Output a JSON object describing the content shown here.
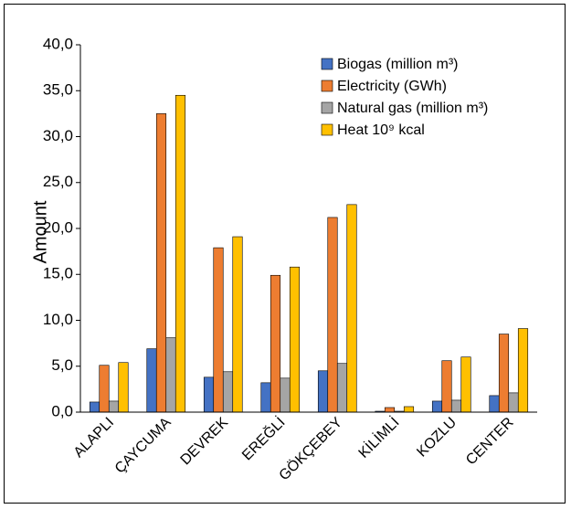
{
  "chart_data": {
    "type": "bar",
    "title": "",
    "xlabel": "",
    "ylabel": "Amount",
    "ylim": [
      0,
      40
    ],
    "yticks": [
      "0,0",
      "5,0",
      "10,0",
      "15,0",
      "20,0",
      "25,0",
      "30,0",
      "35,0",
      "40,0"
    ],
    "grid": false,
    "legend_position": "top-right",
    "categories": [
      "ALAPLI",
      "ÇAYCUMA",
      "DEVREK",
      "EREĞLİ",
      "GÖKÇEBEY",
      "KİLİMLİ",
      "KOZLU",
      "CENTER"
    ],
    "series": [
      {
        "name": "Biogas (million m³)",
        "color": "#4472C4",
        "values": [
          1.1,
          6.9,
          3.8,
          3.2,
          4.5,
          0.1,
          1.2,
          1.8
        ]
      },
      {
        "name": "Electricity (GWh)",
        "color": "#ED7D31",
        "values": [
          5.1,
          32.5,
          17.9,
          14.9,
          21.2,
          0.5,
          5.6,
          8.5
        ]
      },
      {
        "name": "Natural gas (million m³)",
        "color": "#A5A5A5",
        "values": [
          1.2,
          8.1,
          4.4,
          3.7,
          5.3,
          0.1,
          1.3,
          2.1
        ]
      },
      {
        "name": "Heat 10⁹ kcal",
        "color": "#FFC000",
        "values": [
          5.4,
          34.5,
          19.1,
          15.8,
          22.6,
          0.6,
          6.0,
          9.1
        ]
      }
    ]
  }
}
